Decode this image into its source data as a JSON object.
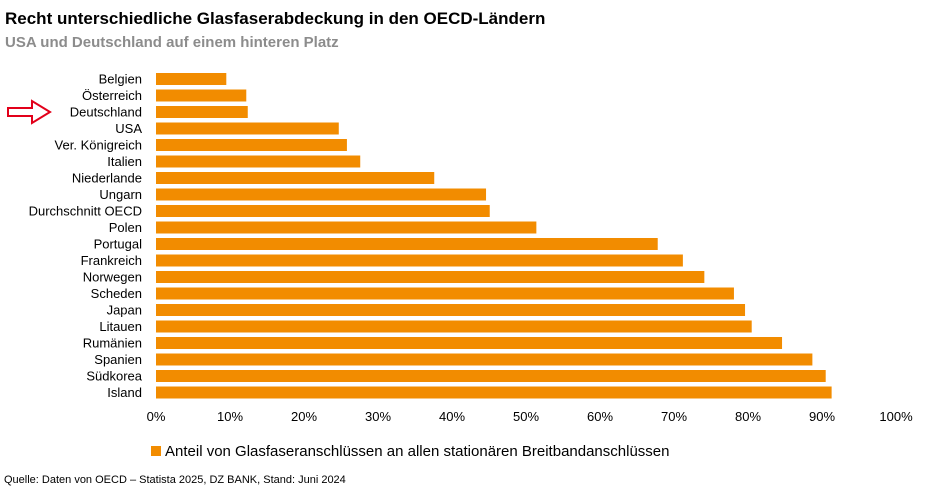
{
  "title": "Recht unterschiedliche Glasfaserabdeckung in den OECD-Ländern",
  "subtitle": "USA und Deutschland auf einem hinteren Platz",
  "source": "Quelle: Daten von OECD – Statista 2025, DZ BANK, Stand: Juni 2024",
  "colors": {
    "bar": "#F28C00",
    "arrow": "#E2001A"
  },
  "chart_data": {
    "type": "bar",
    "orientation": "horizontal",
    "categories": [
      "Belgien",
      "Österreich",
      "Deutschland",
      "USA",
      "Ver. Königreich",
      "Italien",
      "Niederlande",
      "Ungarn",
      "Durchschnitt OECD",
      "Polen",
      "Portugal",
      "Frankreich",
      "Norwegen",
      "Scheden",
      "Japan",
      "Litauen",
      "Rumänien",
      "Spanien",
      "Südkorea",
      "Island"
    ],
    "series": [
      {
        "name": "Anteil von Glasfaseranschlüssen an allen stationären Breitbandanschlüssen",
        "values": [
          9.5,
          12.2,
          12.4,
          24.7,
          25.8,
          27.6,
          37.6,
          44.6,
          45.1,
          51.4,
          67.8,
          71.2,
          74.1,
          78.1,
          79.6,
          80.5,
          84.6,
          88.7,
          90.5,
          91.3
        ]
      }
    ],
    "xlim": [
      0,
      100
    ],
    "xticks": [
      "0%",
      "10%",
      "20%",
      "30%",
      "40%",
      "50%",
      "60%",
      "70%",
      "80%",
      "90%",
      "100%"
    ],
    "grid": false,
    "legend_position": "bottom",
    "annotations": [
      {
        "type": "arrow",
        "target": "Deutschland"
      }
    ]
  }
}
